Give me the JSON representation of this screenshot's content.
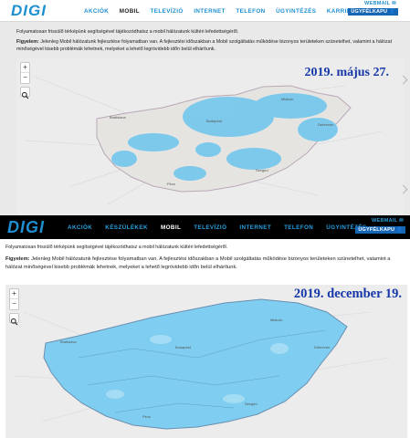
{
  "brand": {
    "logo_text": "DIGI",
    "accent": "#1e8fd0",
    "customer_blue": "#1566b5",
    "coverage_color": "#78c8ec"
  },
  "top_panel": {
    "nav": {
      "items": [
        "AKCIÓK",
        "MOBIL",
        "TELEVÍZIÓ",
        "INTERNET",
        "TELEFON",
        "ÜGYINTÉZÉS",
        "KARRIER"
      ],
      "active": "MOBIL",
      "webmail": "WEBMAIL ✉",
      "customer_gate": "ÜGYFÉLKAPU 👤"
    },
    "intro": "Folyamatosan frissülő térképünk segítségével tájékozódhatsz a mobil hálózatunk kültéri lefedettségéről.",
    "warning_label": "Figyelem:",
    "warning_text": " Jelenleg Mobil hálózatunk fejlesztése folyamatban van. A fejlesztési időszakban a Mobil szolgáltatás működése bizonyos területeken szünetelhet, valamint a hálózat minőségével kisebb problémák lehetnek, melyeket a lehető legrövidebb időn belül elhárítunk.",
    "date_stamp": "2019. május 27.",
    "zoom_in": "+",
    "zoom_out": "−",
    "cities": [
      "Bratislava",
      "Budapest",
      "Miskolc",
      "Debrecen",
      "Szeged",
      "Pécs"
    ]
  },
  "bottom_panel": {
    "nav": {
      "items": [
        "AKCIÓK",
        "KÉSZÜLÉKEK",
        "MOBIL",
        "TELEVÍZIÓ",
        "INTERNET",
        "TELEFON",
        "ÜGYINTÉZÉS"
      ],
      "active": "MOBIL",
      "webmail": "WEBMAIL ✉",
      "customer_gate": "ÜGYFÉLKAPU 👤"
    },
    "intro": "Folyamatosan frissülő térképünk segítségével tájékozódhatsz a mobil hálózatunk kültéri lefedettségéről.",
    "warning_label": "Figyelem:",
    "warning_text": " Jelenleg Mobil hálózatunk fejlesztése folyamatban van. A fejlesztési időszakban a Mobil szolgáltatás működése bizonyos területeken szünetelhet, valamint a hálózat minőségével kisebb problémák lehetnek, melyeket a lehető legrövidebb időn belül elhárítunk.",
    "date_stamp": "2019. december 19.",
    "zoom_in": "+",
    "zoom_out": "−",
    "cities": [
      "Bratislava",
      "Budapest",
      "Miskolc",
      "Debrecen",
      "Szeged",
      "Pécs"
    ]
  }
}
